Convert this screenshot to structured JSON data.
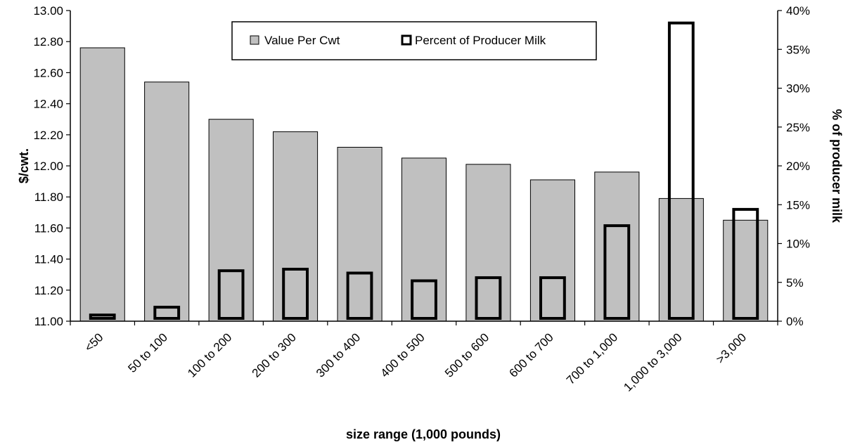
{
  "chart_data": {
    "type": "bar",
    "categories": [
      "<50",
      "50 to 100",
      "100 to 200",
      "200 to 300",
      "300 to 400",
      "400 to 500",
      "500 to 600",
      "600 to 700",
      "700 to 1,000",
      "1,000 to 3,000",
      ">3,000"
    ],
    "series": [
      {
        "name": "Value Per Cwt",
        "axis": "left",
        "style": "filled-gray",
        "values": [
          12.76,
          12.54,
          12.3,
          12.22,
          12.12,
          12.05,
          12.01,
          11.91,
          11.96,
          11.79,
          11.65
        ]
      },
      {
        "name": "Percent of Producer Milk",
        "axis": "right",
        "style": "outline-black",
        "values": [
          0.8,
          1.8,
          6.5,
          6.7,
          6.2,
          5.2,
          5.6,
          5.6,
          12.3,
          38.4,
          14.4
        ]
      }
    ],
    "xlabel": "size range (1,000 pounds)",
    "ylabel": "$/cwt.",
    "y2label": "% of producer milk",
    "ylim": [
      11.0,
      13.0
    ],
    "y2lim": [
      0,
      40
    ],
    "yticks": [
      "11.00",
      "11.20",
      "11.40",
      "11.60",
      "11.80",
      "12.00",
      "12.20",
      "12.40",
      "12.60",
      "12.80",
      "13.00"
    ],
    "y2ticks": [
      "0%",
      "5%",
      "10%",
      "15%",
      "20%",
      "25%",
      "30%",
      "35%",
      "40%"
    ],
    "grid": false,
    "legend": "top-center",
    "colors": {
      "bar_fill": "#c0c0c0",
      "bar_stroke": "#000000",
      "outline_stroke": "#000000"
    }
  }
}
